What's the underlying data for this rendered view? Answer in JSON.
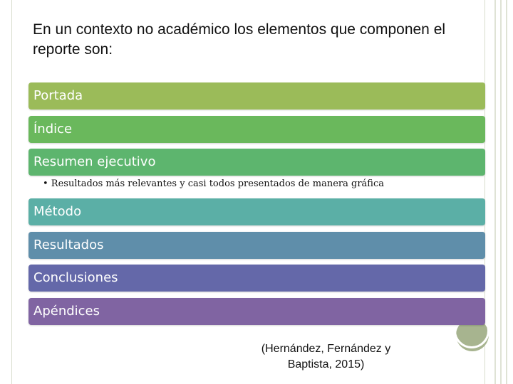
{
  "slide": {
    "title": "En un contexto no académico los elementos que componen el reporte son:",
    "items": [
      {
        "label": "Portada",
        "color": "#9bbb59"
      },
      {
        "label": "Índice",
        "color": "#6ab85c"
      },
      {
        "label": "Resumen ejecutivo",
        "color": "#5db56e"
      },
      {
        "label": "Método",
        "color": "#5bafa6"
      },
      {
        "label": "Resultados",
        "color": "#5f8eaa"
      },
      {
        "label": "Conclusiones",
        "color": "#6468a9"
      },
      {
        "label": "Apéndices",
        "color": "#8064a2"
      }
    ],
    "sub_bullet": "• Resultados más relevantes y casi todos presentados de manera gráfica",
    "citation_line1": "(Hernández, Fernández y",
    "citation_line2": "Baptista, 2015)"
  }
}
